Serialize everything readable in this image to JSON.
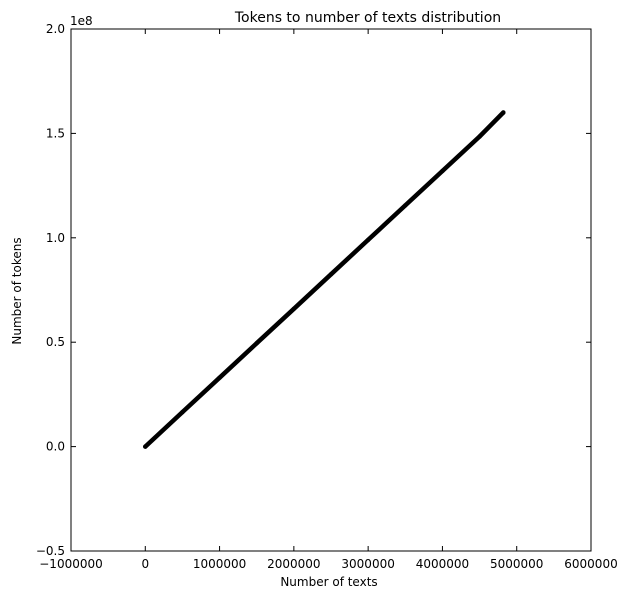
{
  "chart_data": {
    "type": "line",
    "title": "Tokens to number of texts distribution",
    "xlabel": "Number of texts",
    "ylabel": "Number of tokens",
    "xlim": [
      -1000000,
      6000000
    ],
    "ylim": [
      -0.5,
      2.0
    ],
    "x_ticks": [
      -1000000,
      0,
      1000000,
      2000000,
      3000000,
      4000000,
      5000000,
      6000000
    ],
    "x_tick_labels": [
      "−1000000",
      "0",
      "1000000",
      "2000000",
      "3000000",
      "4000000",
      "5000000",
      "6000000"
    ],
    "y_ticks": [
      -0.5,
      0.0,
      0.5,
      1.0,
      1.5,
      2.0
    ],
    "y_tick_labels": [
      "−0.5",
      "0.0",
      "0.5",
      "1.0",
      "1.5",
      "2.0"
    ],
    "y_scale_label": "1e8",
    "grid": false,
    "legend": "none",
    "series": [
      {
        "color": "#000000",
        "x": [
          0,
          500000,
          1000000,
          1500000,
          2000000,
          2500000,
          3000000,
          3500000,
          4000000,
          4500000,
          4820000
        ],
        "y": [
          0.0,
          0.165,
          0.33,
          0.495,
          0.66,
          0.825,
          0.99,
          1.155,
          1.32,
          1.485,
          1.6
        ]
      }
    ]
  }
}
